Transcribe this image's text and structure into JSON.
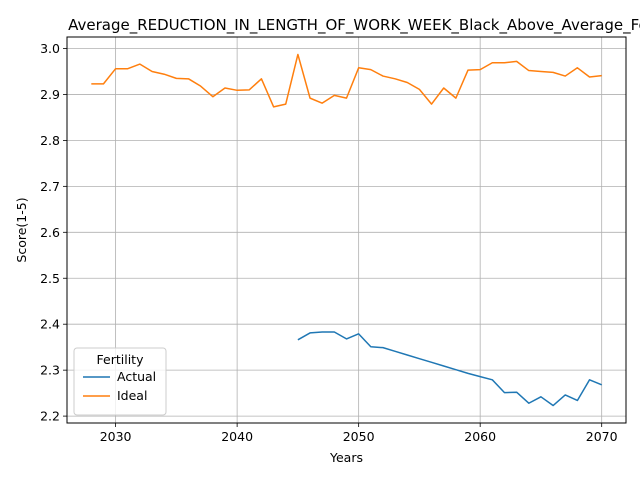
{
  "chart_data": {
    "type": "line",
    "title": "Average_REDUCTION_IN_LENGTH_OF_WORK_WEEK_Black_Above_Average_Female",
    "xlabel": "Years",
    "ylabel": "Score(1-5)",
    "xlim": [
      2026,
      2072
    ],
    "ylim": [
      2.185,
      3.025
    ],
    "xticks": [
      2030,
      2040,
      2050,
      2060,
      2070
    ],
    "yticks": [
      2.2,
      2.3,
      2.4,
      2.5,
      2.6,
      2.7,
      2.8,
      2.9,
      3.0
    ],
    "xtick_labels": [
      "2030",
      "2040",
      "2050",
      "2060",
      "2070"
    ],
    "ytick_labels": [
      "2.2",
      "2.3",
      "2.4",
      "2.5",
      "2.6",
      "2.7",
      "2.8",
      "2.9",
      "3.0"
    ],
    "grid": true,
    "legend": {
      "title": "Fertility",
      "placement": "lower-left"
    },
    "series": [
      {
        "name": "Actual",
        "color": "#1f77b4",
        "x": [
          2045,
          2046,
          2047,
          2048,
          2049,
          2050,
          2051,
          2052,
          2053,
          2054,
          2055,
          2056,
          2057,
          2058,
          2059,
          2060,
          2061,
          2062,
          2063,
          2064,
          2065,
          2066,
          2067,
          2068,
          2069,
          2070
        ],
        "y": [
          2.366,
          2.381,
          2.383,
          2.383,
          2.368,
          2.379,
          2.351,
          2.349,
          2.341,
          2.333,
          2.325,
          2.317,
          2.309,
          2.301,
          2.293,
          2.286,
          2.279,
          2.251,
          2.252,
          2.228,
          2.242,
          2.223,
          2.246,
          2.234,
          2.279,
          2.268
        ]
      },
      {
        "name": "Ideal",
        "color": "#ff7f0e",
        "x": [
          2028,
          2029,
          2030,
          2031,
          2032,
          2033,
          2034,
          2035,
          2036,
          2037,
          2038,
          2039,
          2040,
          2041,
          2042,
          2043,
          2044,
          2045,
          2046,
          2047,
          2048,
          2049,
          2050,
          2051,
          2052,
          2053,
          2054,
          2055,
          2056,
          2057,
          2058,
          2059,
          2060,
          2061,
          2062,
          2063,
          2064,
          2065,
          2066,
          2067,
          2068,
          2069,
          2070
        ],
        "y": [
          2.923,
          2.923,
          2.956,
          2.956,
          2.966,
          2.95,
          2.944,
          2.935,
          2.934,
          2.918,
          2.895,
          2.914,
          2.909,
          2.91,
          2.934,
          2.873,
          2.879,
          2.987,
          2.892,
          2.881,
          2.898,
          2.892,
          2.958,
          2.954,
          2.94,
          2.934,
          2.926,
          2.911,
          2.879,
          2.914,
          2.892,
          2.953,
          2.954,
          2.969,
          2.969,
          2.972,
          2.952,
          2.95,
          2.948,
          2.94,
          2.958,
          2.938,
          2.941
        ]
      }
    ]
  }
}
